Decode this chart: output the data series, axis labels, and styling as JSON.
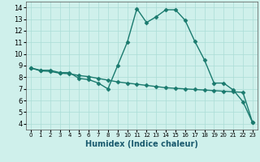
{
  "line1_x": [
    0,
    1,
    2,
    3,
    4,
    5,
    6,
    7,
    8,
    9,
    10,
    11,
    12,
    13,
    14,
    15,
    16,
    17,
    18,
    19,
    20,
    21,
    22,
    23
  ],
  "line1_y": [
    8.8,
    8.6,
    8.6,
    8.4,
    8.4,
    7.9,
    7.8,
    7.5,
    7.0,
    9.0,
    11.0,
    13.9,
    12.7,
    13.2,
    13.8,
    13.8,
    12.9,
    11.1,
    9.5,
    7.5,
    7.5,
    6.9,
    5.9,
    4.1
  ],
  "line2_x": [
    0,
    1,
    2,
    3,
    4,
    5,
    6,
    7,
    8,
    9,
    10,
    11,
    12,
    13,
    14,
    15,
    16,
    17,
    18,
    19,
    20,
    21,
    22,
    23
  ],
  "line2_y": [
    8.8,
    8.55,
    8.5,
    8.35,
    8.3,
    8.15,
    8.05,
    7.9,
    7.75,
    7.6,
    7.5,
    7.4,
    7.3,
    7.2,
    7.1,
    7.05,
    7.0,
    6.95,
    6.9,
    6.85,
    6.8,
    6.75,
    6.7,
    4.1
  ],
  "line_color": "#1a7a6e",
  "marker": "D",
  "markersize": 2.5,
  "linewidth": 1.0,
  "xlabel": "Humidex (Indice chaleur)",
  "xlim": [
    -0.5,
    23.5
  ],
  "ylim": [
    3.5,
    14.5
  ],
  "yticks": [
    4,
    5,
    6,
    7,
    8,
    9,
    10,
    11,
    12,
    13,
    14
  ],
  "xticks": [
    0,
    1,
    2,
    3,
    4,
    5,
    6,
    7,
    8,
    9,
    10,
    11,
    12,
    13,
    14,
    15,
    16,
    17,
    18,
    19,
    20,
    21,
    22,
    23
  ],
  "background_color": "#cff0eb",
  "grid_color": "#aaddd6",
  "xlabel_fontsize": 7,
  "tick_fontsize_x": 5,
  "tick_fontsize_y": 6
}
